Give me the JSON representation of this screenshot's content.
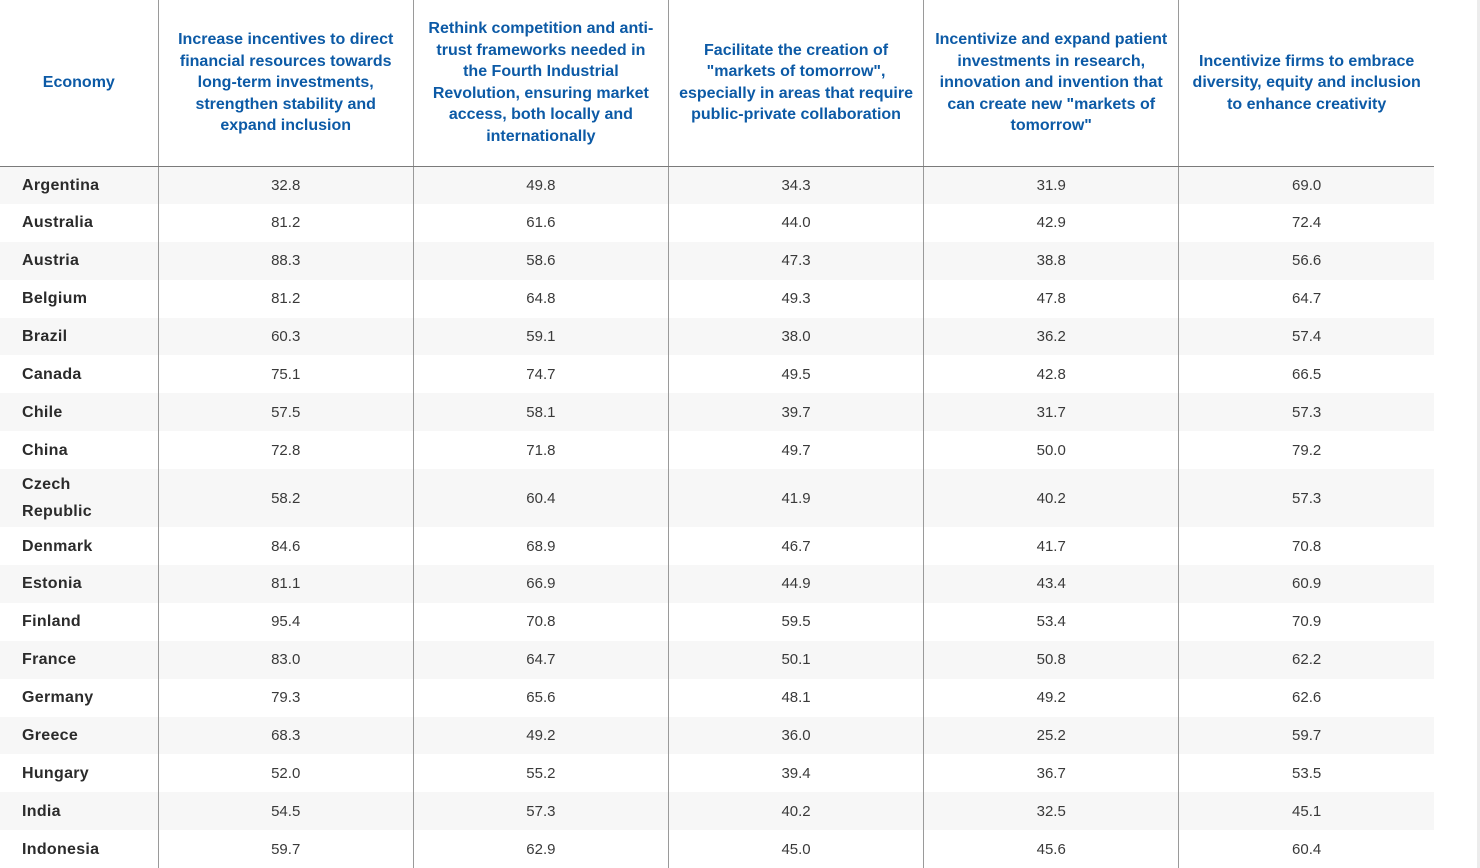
{
  "headers": [
    "Economy",
    "Increase incentives to direct financial resources towards long-term investments, strengthen stability and expand inclusion",
    "Rethink competition and anti-trust frameworks needed in the Fourth Industrial Revolution, ensuring market access, both locally and internationally",
    "Facilitate the creation of \"markets of tomorrow\", especially in areas that require public-private collaboration",
    "Incentivize and expand patient investments in research, innovation and invention that can create new \"markets of tomorrow\"",
    "Incentivize firms to embrace diversity, equity and inclusion to enhance creativity"
  ],
  "rows": [
    {
      "economy": "Argentina",
      "values": [
        "32.8",
        "49.8",
        "34.3",
        "31.9",
        "69.0"
      ]
    },
    {
      "economy": "Australia",
      "values": [
        "81.2",
        "61.6",
        "44.0",
        "42.9",
        "72.4"
      ]
    },
    {
      "economy": "Austria",
      "values": [
        "88.3",
        "58.6",
        "47.3",
        "38.8",
        "56.6"
      ]
    },
    {
      "economy": "Belgium",
      "values": [
        "81.2",
        "64.8",
        "49.3",
        "47.8",
        "64.7"
      ]
    },
    {
      "economy": "Brazil",
      "values": [
        "60.3",
        "59.1",
        "38.0",
        "36.2",
        "57.4"
      ]
    },
    {
      "economy": "Canada",
      "values": [
        "75.1",
        "74.7",
        "49.5",
        "42.8",
        "66.5"
      ]
    },
    {
      "economy": "Chile",
      "values": [
        "57.5",
        "58.1",
        "39.7",
        "31.7",
        "57.3"
      ]
    },
    {
      "economy": "China",
      "values": [
        "72.8",
        "71.8",
        "49.7",
        "50.0",
        "79.2"
      ]
    },
    {
      "economy": "Czech Republic",
      "values": [
        "58.2",
        "60.4",
        "41.9",
        "40.2",
        "57.3"
      ]
    },
    {
      "economy": "Denmark",
      "values": [
        "84.6",
        "68.9",
        "46.7",
        "41.7",
        "70.8"
      ]
    },
    {
      "economy": "Estonia",
      "values": [
        "81.1",
        "66.9",
        "44.9",
        "43.4",
        "60.9"
      ]
    },
    {
      "economy": "Finland",
      "values": [
        "95.4",
        "70.8",
        "59.5",
        "53.4",
        "70.9"
      ]
    },
    {
      "economy": "France",
      "values": [
        "83.0",
        "64.7",
        "50.1",
        "50.8",
        "62.2"
      ]
    },
    {
      "economy": "Germany",
      "values": [
        "79.3",
        "65.6",
        "48.1",
        "49.2",
        "62.6"
      ]
    },
    {
      "economy": "Greece",
      "values": [
        "68.3",
        "49.2",
        "36.0",
        "25.2",
        "59.7"
      ]
    },
    {
      "economy": "Hungary",
      "values": [
        "52.0",
        "55.2",
        "39.4",
        "36.7",
        "53.5"
      ]
    },
    {
      "economy": "India",
      "values": [
        "54.5",
        "57.3",
        "40.2",
        "32.5",
        "45.1"
      ]
    },
    {
      "economy": "Indonesia",
      "values": [
        "59.7",
        "62.9",
        "45.0",
        "45.6",
        "60.4"
      ]
    }
  ]
}
